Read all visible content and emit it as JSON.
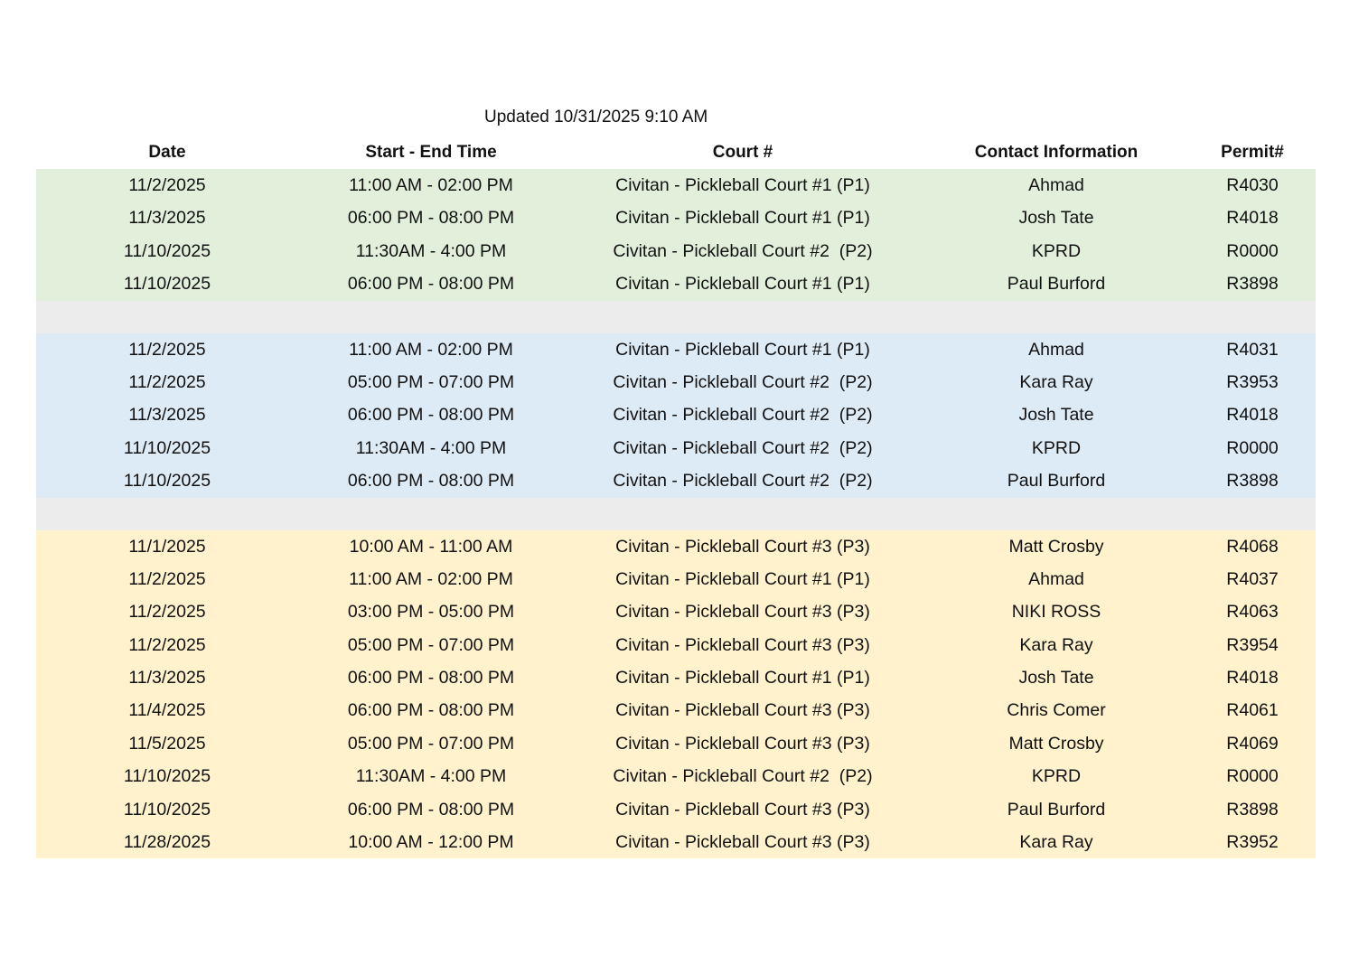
{
  "updated": "Updated 10/31/2025 9:10 AM",
  "columns": [
    "Date",
    "Start - End Time",
    "Court #",
    "Contact Information",
    "Permit#"
  ],
  "colors": {
    "green": "#e2efda",
    "blue": "#ddebf7",
    "yellow": "#fff2cc",
    "separator": "#ececec"
  },
  "groups": [
    {
      "color": "green",
      "rows": [
        [
          "11/2/2025",
          "11:00 AM - 02:00 PM",
          "Civitan - Pickleball Court #1 (P1)",
          "Ahmad",
          "R4030"
        ],
        [
          "11/3/2025",
          "06:00 PM - 08:00 PM",
          "Civitan - Pickleball Court #1 (P1)",
          "Josh Tate",
          "R4018"
        ],
        [
          "11/10/2025",
          "11:30AM - 4:00 PM",
          "Civitan - Pickleball Court #2  (P2)",
          "KPRD",
          "R0000"
        ],
        [
          "11/10/2025",
          "06:00 PM - 08:00 PM",
          "Civitan - Pickleball Court #1 (P1)",
          "Paul Burford",
          "R3898"
        ]
      ]
    },
    {
      "color": "blue",
      "rows": [
        [
          "11/2/2025",
          "11:00 AM - 02:00 PM",
          "Civitan - Pickleball Court #1 (P1)",
          "Ahmad",
          "R4031"
        ],
        [
          "11/2/2025",
          "05:00 PM - 07:00 PM",
          "Civitan - Pickleball Court #2  (P2)",
          "Kara Ray",
          "R3953"
        ],
        [
          "11/3/2025",
          "06:00 PM - 08:00 PM",
          "Civitan - Pickleball Court #2  (P2)",
          "Josh Tate",
          "R4018"
        ],
        [
          "11/10/2025",
          "11:30AM - 4:00 PM",
          "Civitan - Pickleball Court #2  (P2)",
          "KPRD",
          "R0000"
        ],
        [
          "11/10/2025",
          "06:00 PM - 08:00 PM",
          "Civitan - Pickleball Court #2  (P2)",
          "Paul Burford",
          "R3898"
        ]
      ]
    },
    {
      "color": "yellow",
      "rows": [
        [
          "11/1/2025",
          "10:00 AM - 11:00 AM",
          "Civitan - Pickleball Court #3 (P3)",
          "Matt Crosby",
          "R4068"
        ],
        [
          "11/2/2025",
          "11:00 AM - 02:00 PM",
          "Civitan - Pickleball Court #1 (P1)",
          "Ahmad",
          "R4037"
        ],
        [
          "11/2/2025",
          "03:00 PM - 05:00 PM",
          "Civitan - Pickleball Court #3 (P3)",
          "NIKI ROSS",
          "R4063"
        ],
        [
          "11/2/2025",
          "05:00 PM - 07:00 PM",
          "Civitan - Pickleball Court #3 (P3)",
          "Kara Ray",
          "R3954"
        ],
        [
          "11/3/2025",
          "06:00 PM - 08:00 PM",
          "Civitan - Pickleball Court #1 (P1)",
          "Josh Tate",
          "R4018"
        ],
        [
          "11/4/2025",
          "06:00 PM - 08:00 PM",
          "Civitan - Pickleball Court #3 (P3)",
          "Chris Comer",
          "R4061"
        ],
        [
          "11/5/2025",
          "05:00 PM - 07:00 PM",
          "Civitan - Pickleball Court #3 (P3)",
          "Matt Crosby",
          "R4069"
        ],
        [
          "11/10/2025",
          "11:30AM - 4:00 PM",
          "Civitan - Pickleball Court #2  (P2)",
          "KPRD",
          "R0000"
        ],
        [
          "11/10/2025",
          "06:00 PM - 08:00 PM",
          "Civitan - Pickleball Court #3 (P3)",
          "Paul Burford",
          "R3898"
        ],
        [
          "11/28/2025",
          "10:00 AM - 12:00 PM",
          "Civitan - Pickleball Court #3 (P3)",
          "Kara Ray",
          "R3952"
        ]
      ]
    }
  ]
}
